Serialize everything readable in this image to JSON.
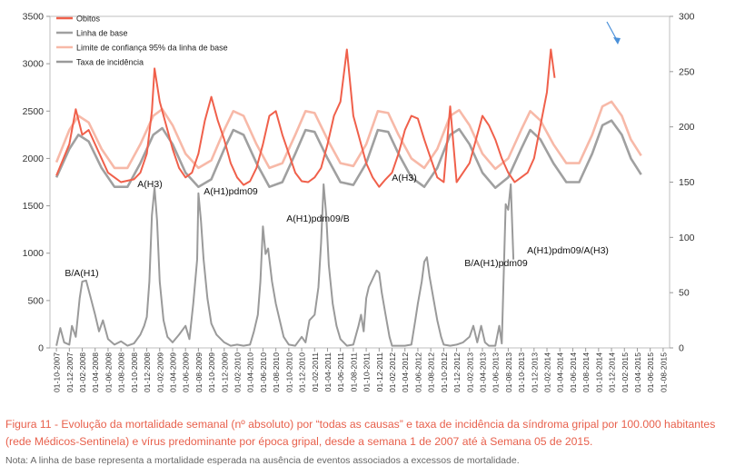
{
  "chart_data": {
    "type": "line",
    "x_tick_labels": [
      "01-10-2007",
      "01-12-2007",
      "01-02-2008",
      "01-04-2008",
      "01-06-2008",
      "01-08-2008",
      "01-10-2008",
      "01-12-2008",
      "01-02-2009",
      "01-04-2009",
      "01-06-2009",
      "01-08-2009",
      "01-10-2009",
      "01-12-2009",
      "01-02-2010",
      "01-04-2010",
      "01-06-2010",
      "01-08-2010",
      "01-10-2010",
      "01-12-2010",
      "01-02-2011",
      "01-04-2011",
      "01-06-2011",
      "01-08-2011",
      "01-10-2011",
      "01-12-2011",
      "01-02-2012",
      "01-04-2012",
      "01-06-2012",
      "01-08-2012",
      "01-10-2012",
      "01-12-2012",
      "01-02-2013",
      "01-04-2013",
      "01-06-2013",
      "01-08-2013",
      "01-10-2013",
      "01-12-2013",
      "01-02-2014",
      "01-04-2014",
      "01-06-2014",
      "01-08-2014",
      "01-10-2014",
      "01-12-2014",
      "01-02-2015",
      "01-04-2015",
      "01-06-2015",
      "01-08-2015"
    ],
    "y_left": {
      "range": [
        0,
        3500
      ],
      "ticks": [
        "0",
        "500",
        "1000",
        "1500",
        "2000",
        "2500",
        "3000",
        "3500"
      ]
    },
    "y_right": {
      "range": [
        0,
        300
      ],
      "ticks": [
        "0",
        "50",
        "100",
        "150",
        "200",
        "250",
        "300"
      ]
    },
    "legend": [
      "Obitos",
      "Linha de base",
      "Limite de confiança 95% da linha de base",
      "Taxa de incidência"
    ],
    "legend_position": "top-left",
    "annotations": [
      "B/A(H1)",
      "A(H3)",
      "A(H1)pdm09",
      "A(H1)pdm09/B",
      "A(H3)",
      "B/A(H1)pdm09",
      "A(H1)pdm09/A(H3)"
    ],
    "series": [
      {
        "name": "Obitos",
        "axis": "left",
        "color": "#f0604b",
        "points": [
          [
            0,
            1820
          ],
          [
            1,
            2150
          ],
          [
            1.5,
            2520
          ],
          [
            2,
            2250
          ],
          [
            2.5,
            2300
          ],
          [
            3,
            2150
          ],
          [
            3.5,
            2000
          ],
          [
            4,
            1850
          ],
          [
            5,
            1750
          ],
          [
            6,
            1780
          ],
          [
            6.5,
            1850
          ],
          [
            7,
            2050
          ],
          [
            7.4,
            2500
          ],
          [
            7.6,
            2950
          ],
          [
            8,
            2600
          ],
          [
            8.5,
            2350
          ],
          [
            9,
            2100
          ],
          [
            9.5,
            1900
          ],
          [
            10,
            1800
          ],
          [
            10.5,
            1850
          ],
          [
            11,
            2050
          ],
          [
            11.5,
            2400
          ],
          [
            12,
            2650
          ],
          [
            12.5,
            2400
          ],
          [
            13,
            2200
          ],
          [
            13.5,
            1950
          ],
          [
            14,
            1800
          ],
          [
            14.5,
            1720
          ],
          [
            15,
            1760
          ],
          [
            15.5,
            1900
          ],
          [
            16,
            2150
          ],
          [
            16.5,
            2450
          ],
          [
            17,
            2500
          ],
          [
            17.5,
            2250
          ],
          [
            18,
            2050
          ],
          [
            18.5,
            1850
          ],
          [
            19,
            1760
          ],
          [
            19.5,
            1750
          ],
          [
            20,
            1800
          ],
          [
            20.5,
            1900
          ],
          [
            21,
            2150
          ],
          [
            21.5,
            2450
          ],
          [
            22,
            2600
          ],
          [
            22.5,
            3150
          ],
          [
            23,
            2450
          ],
          [
            23.5,
            2200
          ],
          [
            24,
            1950
          ],
          [
            24.5,
            1800
          ],
          [
            25,
            1700
          ],
          [
            25.5,
            1780
          ],
          [
            26,
            1850
          ],
          [
            26.5,
            2050
          ],
          [
            27,
            2300
          ],
          [
            27.5,
            2450
          ],
          [
            28,
            2420
          ],
          [
            28.5,
            2200
          ],
          [
            29,
            2000
          ],
          [
            29.5,
            1800
          ],
          [
            30,
            1750
          ],
          [
            30.5,
            2550
          ],
          [
            31,
            1750
          ],
          [
            31.5,
            1850
          ],
          [
            32,
            1950
          ],
          [
            32.5,
            2200
          ],
          [
            33,
            2450
          ],
          [
            33.5,
            2350
          ],
          [
            34,
            2200
          ],
          [
            34.5,
            2000
          ],
          [
            35,
            1850
          ],
          [
            35.5,
            1750
          ],
          [
            36,
            1800
          ],
          [
            36.5,
            1850
          ],
          [
            37,
            2000
          ],
          [
            37.5,
            2350
          ],
          [
            38,
            2700
          ],
          [
            38.3,
            3150
          ],
          [
            38.6,
            2850
          ]
        ]
      },
      {
        "name": "Linha de base",
        "axis": "left",
        "color": "#a0a0a0",
        "points": [
          [
            0,
            1800
          ],
          [
            1,
            2100
          ],
          [
            1.7,
            2250
          ],
          [
            2.5,
            2180
          ],
          [
            3.5,
            1900
          ],
          [
            4.5,
            1700
          ],
          [
            5.5,
            1700
          ],
          [
            6.5,
            1950
          ],
          [
            7.5,
            2250
          ],
          [
            8.2,
            2320
          ],
          [
            9,
            2150
          ],
          [
            10,
            1850
          ],
          [
            11,
            1700
          ],
          [
            12,
            1780
          ],
          [
            13,
            2100
          ],
          [
            13.7,
            2300
          ],
          [
            14.5,
            2250
          ],
          [
            15.5,
            1950
          ],
          [
            16.5,
            1700
          ],
          [
            17.5,
            1750
          ],
          [
            18.5,
            2050
          ],
          [
            19.3,
            2300
          ],
          [
            20,
            2280
          ],
          [
            21,
            2000
          ],
          [
            22,
            1750
          ],
          [
            23,
            1720
          ],
          [
            24,
            1950
          ],
          [
            24.9,
            2300
          ],
          [
            25.7,
            2280
          ],
          [
            26.5,
            2050
          ],
          [
            27.5,
            1800
          ],
          [
            28.5,
            1700
          ],
          [
            29.5,
            1900
          ],
          [
            30.5,
            2250
          ],
          [
            31.2,
            2310
          ],
          [
            32,
            2150
          ],
          [
            33,
            1850
          ],
          [
            34,
            1690
          ],
          [
            35,
            1800
          ],
          [
            36,
            2100
          ],
          [
            36.7,
            2300
          ],
          [
            37.5,
            2200
          ],
          [
            38.5,
            1950
          ],
          [
            39.5,
            1750
          ],
          [
            40.5,
            1750
          ],
          [
            41.5,
            2050
          ],
          [
            42.3,
            2350
          ],
          [
            43,
            2400
          ],
          [
            43.8,
            2250
          ],
          [
            44.5,
            2000
          ],
          [
            45.3,
            1830
          ]
        ]
      },
      {
        "name": "Limite de confiança 95% da linha de base",
        "axis": "left",
        "color": "#f7b9a8",
        "points": [
          [
            0,
            1960
          ],
          [
            1,
            2300
          ],
          [
            1.7,
            2450
          ],
          [
            2.5,
            2380
          ],
          [
            3.5,
            2100
          ],
          [
            4.5,
            1900
          ],
          [
            5.5,
            1900
          ],
          [
            6.5,
            2150
          ],
          [
            7.5,
            2450
          ],
          [
            8.2,
            2520
          ],
          [
            9,
            2350
          ],
          [
            10,
            2050
          ],
          [
            11,
            1900
          ],
          [
            12,
            1980
          ],
          [
            13,
            2300
          ],
          [
            13.7,
            2500
          ],
          [
            14.5,
            2450
          ],
          [
            15.5,
            2150
          ],
          [
            16.5,
            1900
          ],
          [
            17.5,
            1950
          ],
          [
            18.5,
            2250
          ],
          [
            19.3,
            2500
          ],
          [
            20,
            2480
          ],
          [
            21,
            2200
          ],
          [
            22,
            1950
          ],
          [
            23,
            1920
          ],
          [
            24,
            2150
          ],
          [
            24.9,
            2500
          ],
          [
            25.7,
            2480
          ],
          [
            26.5,
            2250
          ],
          [
            27.5,
            2000
          ],
          [
            28.5,
            1900
          ],
          [
            29.5,
            2100
          ],
          [
            30.5,
            2450
          ],
          [
            31.2,
            2510
          ],
          [
            32,
            2350
          ],
          [
            33,
            2050
          ],
          [
            34,
            1890
          ],
          [
            35,
            2000
          ],
          [
            36,
            2300
          ],
          [
            36.7,
            2500
          ],
          [
            37.5,
            2400
          ],
          [
            38.5,
            2150
          ],
          [
            39.5,
            1950
          ],
          [
            40.5,
            1950
          ],
          [
            41.5,
            2250
          ],
          [
            42.3,
            2550
          ],
          [
            43,
            2600
          ],
          [
            43.8,
            2450
          ],
          [
            44.5,
            2200
          ],
          [
            45.3,
            2030
          ]
        ]
      },
      {
        "name": "Taxa de incidência",
        "axis": "right",
        "color": "#9a9a9a",
        "points": [
          [
            0,
            2
          ],
          [
            0.3,
            18
          ],
          [
            0.6,
            5
          ],
          [
            1,
            3
          ],
          [
            1.2,
            20
          ],
          [
            1.5,
            10
          ],
          [
            1.8,
            45
          ],
          [
            2,
            60
          ],
          [
            2.3,
            61
          ],
          [
            2.6,
            48
          ],
          [
            3,
            30
          ],
          [
            3.3,
            15
          ],
          [
            3.6,
            25
          ],
          [
            4,
            8
          ],
          [
            4.5,
            3
          ],
          [
            5,
            6
          ],
          [
            5.5,
            2
          ],
          [
            6,
            4
          ],
          [
            6.5,
            12
          ],
          [
            6.8,
            20
          ],
          [
            7,
            28
          ],
          [
            7.2,
            60
          ],
          [
            7.4,
            120
          ],
          [
            7.6,
            145
          ],
          [
            7.8,
            115
          ],
          [
            8,
            60
          ],
          [
            8.3,
            25
          ],
          [
            8.6,
            10
          ],
          [
            9,
            5
          ],
          [
            9.5,
            12
          ],
          [
            10,
            20
          ],
          [
            10.3,
            8
          ],
          [
            10.6,
            40
          ],
          [
            10.9,
            80
          ],
          [
            11,
            140
          ],
          [
            11.2,
            115
          ],
          [
            11.4,
            80
          ],
          [
            11.7,
            45
          ],
          [
            12,
            22
          ],
          [
            12.4,
            12
          ],
          [
            13,
            5
          ],
          [
            13.5,
            2
          ],
          [
            14,
            3
          ],
          [
            14.5,
            2
          ],
          [
            15,
            3
          ],
          [
            15.3,
            15
          ],
          [
            15.6,
            30
          ],
          [
            15.8,
            60
          ],
          [
            16,
            110
          ],
          [
            16.2,
            85
          ],
          [
            16.4,
            90
          ],
          [
            16.7,
            60
          ],
          [
            17,
            40
          ],
          [
            17.3,
            25
          ],
          [
            17.6,
            10
          ],
          [
            18,
            3
          ],
          [
            18.5,
            2
          ],
          [
            19,
            10
          ],
          [
            19.3,
            5
          ],
          [
            19.6,
            25
          ],
          [
            20,
            30
          ],
          [
            20.3,
            55
          ],
          [
            20.5,
            95
          ],
          [
            20.7,
            148
          ],
          [
            20.9,
            120
          ],
          [
            21.1,
            75
          ],
          [
            21.4,
            40
          ],
          [
            21.7,
            20
          ],
          [
            22,
            8
          ],
          [
            22.5,
            2
          ],
          [
            23,
            3
          ],
          [
            23.4,
            20
          ],
          [
            23.6,
            30
          ],
          [
            23.8,
            15
          ],
          [
            24,
            45
          ],
          [
            24.2,
            55
          ],
          [
            24.4,
            60
          ],
          [
            24.6,
            65
          ],
          [
            24.8,
            70
          ],
          [
            25,
            68
          ],
          [
            25.2,
            50
          ],
          [
            25.5,
            30
          ],
          [
            25.8,
            10
          ],
          [
            26,
            2
          ],
          [
            26.5,
            2
          ],
          [
            27,
            2
          ],
          [
            27.5,
            3
          ],
          [
            27.8,
            25
          ],
          [
            28,
            40
          ],
          [
            28.3,
            60
          ],
          [
            28.5,
            78
          ],
          [
            28.7,
            82
          ],
          [
            28.9,
            65
          ],
          [
            29.2,
            45
          ],
          [
            29.5,
            25
          ],
          [
            29.8,
            10
          ],
          [
            30,
            3
          ],
          [
            30.5,
            2
          ],
          [
            31,
            3
          ],
          [
            31.5,
            5
          ],
          [
            32,
            10
          ],
          [
            32.3,
            20
          ],
          [
            32.6,
            5
          ],
          [
            32.9,
            20
          ],
          [
            33.2,
            5
          ],
          [
            33.5,
            2
          ],
          [
            34,
            2
          ],
          [
            34.3,
            20
          ],
          [
            34.5,
            4
          ],
          [
            34.8,
            130
          ],
          [
            35,
            125
          ],
          [
            35.2,
            148
          ],
          [
            35.4,
            80
          ]
        ]
      }
    ]
  },
  "caption": {
    "figure": "Figura 11 - Evolução da mortalidade semanal (nº absoluto) por “todas as causas” e taxa de incidência da síndroma gripal por 100.000 habitantes (rede Médicos-Sentinela) e vírus predominante por época gripal, desde a semana 1 de 2007 até à Semana 05 de 2015.",
    "note": "Nota: A linha de base representa a mortalidade esperada na ausência de eventos associados a excessos de mortalidade."
  },
  "colors": {
    "obitos": "#f0604b",
    "baseline": "#a0a0a0",
    "limit": "#f7b9a8",
    "incidence": "#9a9a9a",
    "caption": "#e8604c",
    "arrow": "#4a90d9"
  }
}
